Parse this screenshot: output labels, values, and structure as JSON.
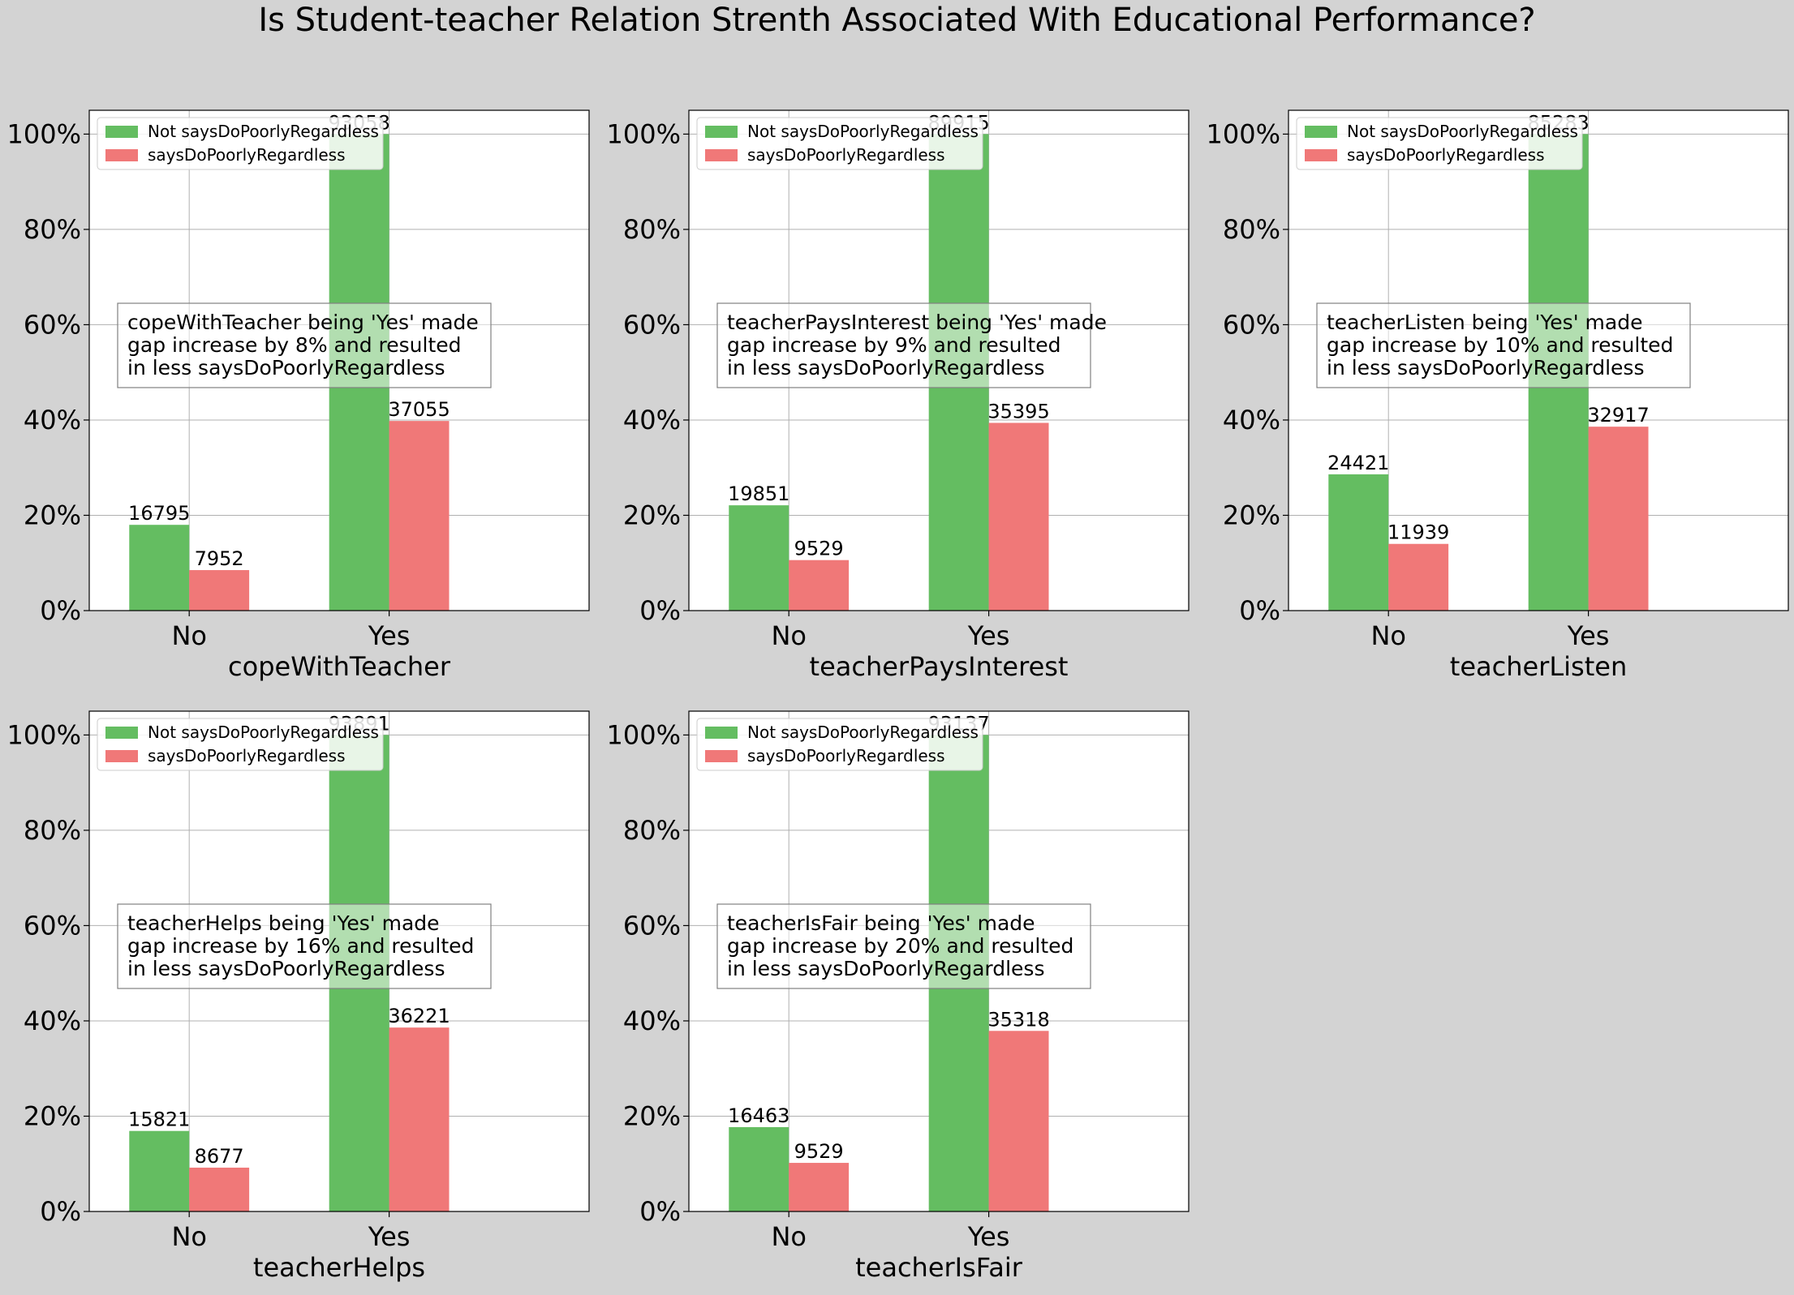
{
  "figure": {
    "title": "Is Student-teacher Relation Strenth Associated With Educational Performance?"
  },
  "colors": {
    "not_says": "#64bd61",
    "says": "#f07878",
    "background": "#d3d3d3",
    "plot_bg": "#ffffff",
    "grid": "#b0b0b0"
  },
  "chart_data": [
    {
      "type": "bar",
      "categories": [
        "No",
        "Yes"
      ],
      "xlabel": "copeWithTeacher",
      "ylim": [
        0,
        105
      ],
      "yticks": [
        "0%",
        "20%",
        "40%",
        "60%",
        "80%",
        "100%"
      ],
      "grid": true,
      "legend": "upper-left",
      "series": [
        {
          "name": "Not saysDoPoorlyRegardless",
          "values_pct": [
            18.0,
            100.0
          ],
          "labels": [
            "16795",
            "93058"
          ]
        },
        {
          "name": "saysDoPoorlyRegardless",
          "values_pct": [
            8.5,
            39.8
          ],
          "labels": [
            "7952",
            "37055"
          ]
        }
      ],
      "annotation": [
        "copeWithTeacher being 'Yes' made",
        "gap increase by 8% and resulted",
        "in less saysDoPoorlyRegardless"
      ]
    },
    {
      "type": "bar",
      "categories": [
        "No",
        "Yes"
      ],
      "xlabel": "teacherPaysInterest",
      "ylim": [
        0,
        105
      ],
      "yticks": [
        "0%",
        "20%",
        "40%",
        "60%",
        "80%",
        "100%"
      ],
      "grid": true,
      "legend": "upper-left",
      "series": [
        {
          "name": "Not saysDoPoorlyRegardless",
          "values_pct": [
            22.1,
            100.0
          ],
          "labels": [
            "19851",
            "89915"
          ]
        },
        {
          "name": "saysDoPoorlyRegardless",
          "values_pct": [
            10.6,
            39.4
          ],
          "labels": [
            "9529",
            "35395"
          ]
        }
      ],
      "annotation": [
        "teacherPaysInterest being 'Yes' made",
        "gap increase by 9% and resulted",
        "in less saysDoPoorlyRegardless"
      ]
    },
    {
      "type": "bar",
      "categories": [
        "No",
        "Yes"
      ],
      "xlabel": "teacherListen",
      "ylim": [
        0,
        105
      ],
      "yticks": [
        "0%",
        "20%",
        "40%",
        "60%",
        "80%",
        "100%"
      ],
      "grid": true,
      "legend": "upper-left",
      "series": [
        {
          "name": "Not saysDoPoorlyRegardless",
          "values_pct": [
            28.6,
            100.0
          ],
          "labels": [
            "24421",
            "85283"
          ]
        },
        {
          "name": "saysDoPoorlyRegardless",
          "values_pct": [
            14.0,
            38.6
          ],
          "labels": [
            "11939",
            "32917"
          ]
        }
      ],
      "annotation": [
        "teacherListen being 'Yes' made",
        "gap increase by 10% and resulted",
        "in less saysDoPoorlyRegardless"
      ]
    },
    {
      "type": "bar",
      "categories": [
        "No",
        "Yes"
      ],
      "xlabel": "teacherHelps",
      "ylim": [
        0,
        105
      ],
      "yticks": [
        "0%",
        "20%",
        "40%",
        "60%",
        "80%",
        "100%"
      ],
      "grid": true,
      "legend": "upper-left",
      "series": [
        {
          "name": "Not saysDoPoorlyRegardless",
          "values_pct": [
            16.9,
            100.0
          ],
          "labels": [
            "15821",
            "93891"
          ]
        },
        {
          "name": "saysDoPoorlyRegardless",
          "values_pct": [
            9.2,
            38.6
          ],
          "labels": [
            "8677",
            "36221"
          ]
        }
      ],
      "annotation": [
        "teacherHelps being 'Yes' made",
        "gap increase by 16% and resulted",
        "in less saysDoPoorlyRegardless"
      ]
    },
    {
      "type": "bar",
      "categories": [
        "No",
        "Yes"
      ],
      "xlabel": "teacherIsFair",
      "ylim": [
        0,
        105
      ],
      "yticks": [
        "0%",
        "20%",
        "40%",
        "60%",
        "80%",
        "100%"
      ],
      "grid": true,
      "legend": "upper-left",
      "series": [
        {
          "name": "Not saysDoPoorlyRegardless",
          "values_pct": [
            17.7,
            100.0
          ],
          "labels": [
            "16463",
            "93137"
          ]
        },
        {
          "name": "saysDoPoorlyRegardless",
          "values_pct": [
            10.2,
            37.9
          ],
          "labels": [
            "9529",
            "35318"
          ]
        }
      ],
      "annotation": [
        "teacherIsFair being 'Yes' made",
        "gap increase by 20% and resulted",
        "in less saysDoPoorlyRegardless"
      ]
    }
  ]
}
